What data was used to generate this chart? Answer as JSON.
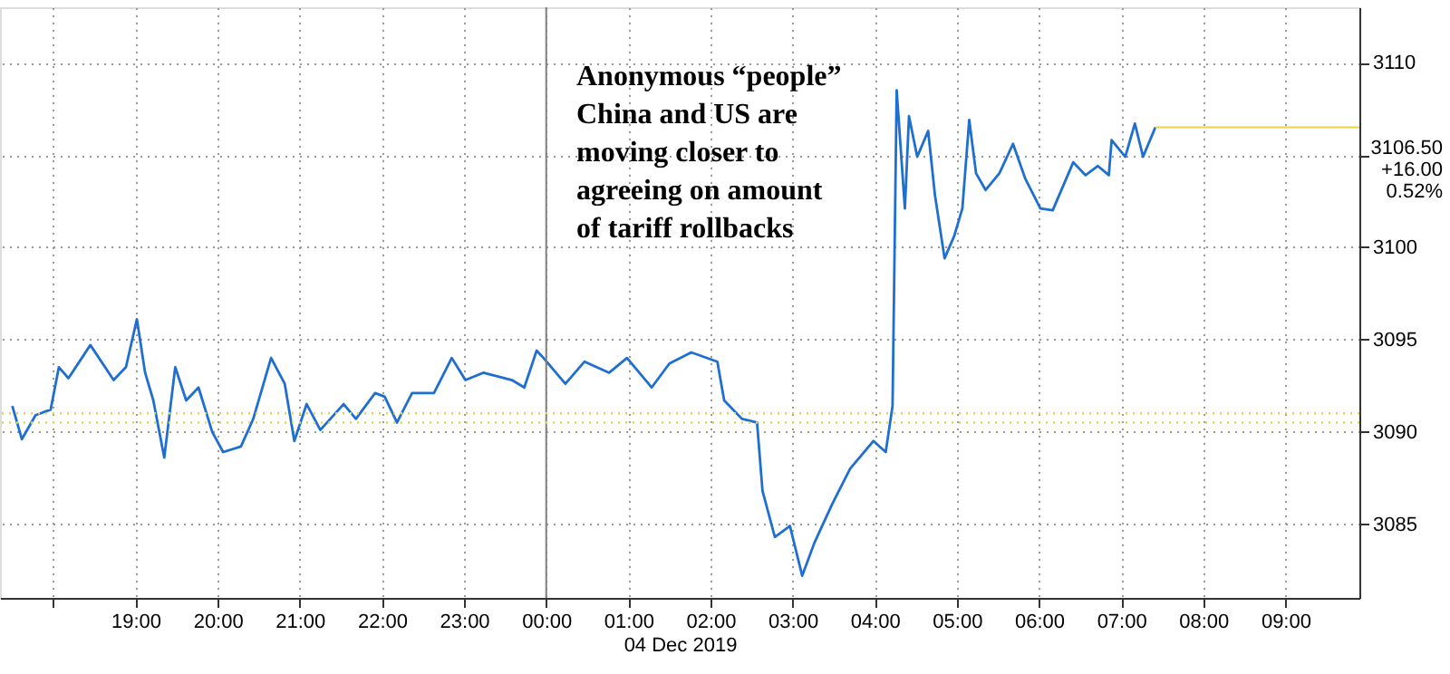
{
  "chart_data": {
    "type": "line",
    "xlabel": "04 Dec 2019",
    "x": [
      "2019-12-03T17:30",
      "2019-12-03T17:37",
      "2019-12-03T17:47",
      "2019-12-03T17:58",
      "2019-12-03T18:04",
      "2019-12-03T18:11",
      "2019-12-03T18:27",
      "2019-12-03T18:44",
      "2019-12-03T18:53",
      "2019-12-03T19:01",
      "2019-12-03T19:07",
      "2019-12-03T19:13",
      "2019-12-03T19:21",
      "2019-12-03T19:29",
      "2019-12-03T19:37",
      "2019-12-03T19:46",
      "2019-12-03T19:56",
      "2019-12-03T20:04",
      "2019-12-03T20:17",
      "2019-12-03T20:26",
      "2019-12-03T20:39",
      "2019-12-03T20:49",
      "2019-12-03T20:56",
      "2019-12-03T21:05",
      "2019-12-03T21:15",
      "2019-12-03T21:32",
      "2019-12-03T21:41",
      "2019-12-03T21:55",
      "2019-12-03T22:02",
      "2019-12-03T22:11",
      "2019-12-03T22:22",
      "2019-12-03T22:38",
      "2019-12-03T22:51",
      "2019-12-03T23:01",
      "2019-12-03T23:14",
      "2019-12-03T23:35",
      "2019-12-03T23:44",
      "2019-12-03T23:53",
      "2019-12-03T23:58",
      "2019-12-04T00:14",
      "2019-12-04T00:28",
      "2019-12-04T00:46",
      "2019-12-04T00:59",
      "2019-12-04T01:17",
      "2019-12-04T01:30",
      "2019-12-04T01:46",
      "2019-12-04T02:05",
      "2019-12-04T02:10",
      "2019-12-04T02:23",
      "2019-12-04T02:34",
      "2019-12-04T02:38",
      "2019-12-04T02:47",
      "2019-12-04T02:58",
      "2019-12-04T03:07",
      "2019-12-04T03:16",
      "2019-12-04T03:29",
      "2019-12-04T03:42",
      "2019-12-04T03:59",
      "2019-12-04T04:08",
      "2019-12-04T04:13",
      "2019-12-04T04:16",
      "2019-12-04T04:22",
      "2019-12-04T04:25",
      "2019-12-04T04:31",
      "2019-12-04T04:39",
      "2019-12-04T04:44",
      "2019-12-04T04:51",
      "2019-12-04T04:58",
      "2019-12-04T05:04",
      "2019-12-04T05:09",
      "2019-12-04T05:14",
      "2019-12-04T05:21",
      "2019-12-04T05:31",
      "2019-12-04T05:41",
      "2019-12-04T05:50",
      "2019-12-04T06:01",
      "2019-12-04T06:10",
      "2019-12-04T06:25",
      "2019-12-04T06:34",
      "2019-12-04T06:43",
      "2019-12-04T06:51",
      "2019-12-04T06:53",
      "2019-12-04T07:03",
      "2019-12-04T07:10",
      "2019-12-04T07:16",
      "2019-12-04T07:25"
    ],
    "series": [
      {
        "color": "#1f6fd0",
        "values": [
          3091.4,
          3089.6,
          3090.9,
          3091.2,
          3093.5,
          3092.9,
          3094.7,
          3092.8,
          3093.5,
          3096.1,
          3093.2,
          3091.7,
          3088.6,
          3093.5,
          3091.7,
          3092.4,
          3090.0,
          3088.9,
          3089.2,
          3090.7,
          3094.0,
          3092.6,
          3089.5,
          3091.5,
          3090.1,
          3091.5,
          3090.7,
          3092.1,
          3091.9,
          3090.5,
          3092.1,
          3092.1,
          3094.0,
          3092.8,
          3093.2,
          3092.8,
          3092.4,
          3094.4,
          3094.0,
          3092.6,
          3093.8,
          3093.2,
          3094.0,
          3092.4,
          3093.7,
          3094.3,
          3093.8,
          3091.7,
          3090.7,
          3090.5,
          3086.8,
          3084.3,
          3084.9,
          3082.2,
          3084.0,
          3086.1,
          3088.0,
          3089.5,
          3088.9,
          3091.4,
          3108.5,
          3102.1,
          3107.1,
          3104.9,
          3106.3,
          3102.8,
          3099.4,
          3100.6,
          3102.1,
          3106.9,
          3104.0,
          3103.1,
          3104.0,
          3105.6,
          3103.7,
          3102.1,
          3102.0,
          3104.6,
          3103.9,
          3104.4,
          3103.9,
          3105.8,
          3104.9,
          3106.7,
          3104.9,
          3106.5
        ]
      }
    ],
    "xlim": [
      "2019-12-03T17:21",
      "2019-12-04T09:54"
    ],
    "xticks": [
      {
        "value": "2019-12-03T18:00",
        "label": null
      },
      {
        "value": "2019-12-03T19:00",
        "label": "19:00"
      },
      {
        "value": "2019-12-03T20:00",
        "label": "20:00"
      },
      {
        "value": "2019-12-03T21:00",
        "label": "21:00"
      },
      {
        "value": "2019-12-03T22:00",
        "label": "22:00"
      },
      {
        "value": "2019-12-03T23:00",
        "label": "23:00"
      },
      {
        "value": "2019-12-04T00:00",
        "label": "00:00"
      },
      {
        "value": "2019-12-04T01:00",
        "label": "01:00"
      },
      {
        "value": "2019-12-04T02:00",
        "label": "02:00"
      },
      {
        "value": "2019-12-04T03:00",
        "label": "03:00"
      },
      {
        "value": "2019-12-04T04:00",
        "label": "04:00"
      },
      {
        "value": "2019-12-04T05:00",
        "label": "05:00"
      },
      {
        "value": "2019-12-04T06:00",
        "label": "06:00"
      },
      {
        "value": "2019-12-04T07:00",
        "label": "07:00"
      },
      {
        "value": "2019-12-04T08:00",
        "label": "08:00"
      },
      {
        "value": "2019-12-04T09:00",
        "label": "09:00"
      }
    ],
    "ylim": [
      3081,
      3113
    ],
    "yticks": [
      3085,
      3090,
      3095,
      3100,
      {
        "value": 3105,
        "label": null
      },
      3110
    ],
    "grid": true,
    "line_style": "solid",
    "ref_lines": [
      {
        "axis": "x",
        "value": "2019-12-04T00:00",
        "color": "#808080",
        "line_style": "solid"
      },
      {
        "axis": "y",
        "value": 3091.0,
        "color": "#e8d44a",
        "line_style": "dotted"
      },
      {
        "axis": "y",
        "value": 3090.5,
        "color": "#e8d44a",
        "line_style": "dotted"
      },
      {
        "axis": "y",
        "value": 3106.5,
        "label": "3106.50\n+16.00\n0.52%",
        "color": "#e8d44a",
        "line_style": "solid"
      }
    ],
    "annotations": [
      "Anonymous “people”\nChina and US are\nmoving closer to\nagreeing on amount\nof tariff rollbacks"
    ]
  }
}
